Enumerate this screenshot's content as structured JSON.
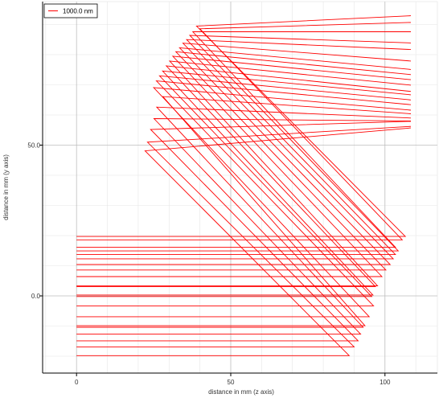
{
  "chart_data": {
    "type": "line",
    "title": "",
    "xlabel": "distance in mm (z axis)",
    "ylabel": "distance in mm (y axis)",
    "xlim": [
      -11,
      117
    ],
    "ylim": [
      -25.6,
      97.6
    ],
    "x_ticks": [
      {
        "value": 0,
        "label": "0"
      },
      {
        "value": 50,
        "label": "50"
      },
      {
        "value": 100,
        "label": "100"
      }
    ],
    "y_ticks": [
      {
        "value": 0,
        "label": "0.0"
      },
      {
        "value": 50,
        "label": "50.0"
      }
    ],
    "grid": true,
    "legend": {
      "position": "top-left",
      "entries": [
        "1000.0 nm"
      ]
    },
    "series": [
      {
        "name": "1000.0 nm",
        "color": "#ff0000",
        "segments": [
          [
            [
              0,
              19.7
            ],
            [
              106.6,
              19.7
            ],
            [
              38.9,
              89.5
            ],
            [
              108.4,
              92.9
            ]
          ],
          [
            [
              0,
              18.6
            ],
            [
              105.6,
              18.6
            ],
            [
              40.0,
              88.6
            ],
            [
              108.4,
              90.7
            ]
          ],
          [
            [
              0,
              16.1
            ],
            [
              103.4,
              16.1
            ],
            [
              37.7,
              87.6
            ],
            [
              108.4,
              87.6
            ]
          ],
          [
            [
              0,
              14.9
            ],
            [
              104.3,
              14.9
            ],
            [
              36.7,
              86.4
            ],
            [
              108.4,
              83.9
            ]
          ],
          [
            [
              0,
              13.7
            ],
            [
              103.4,
              13.7
            ],
            [
              35.7,
              85.0
            ],
            [
              108.4,
              81.7
            ]
          ],
          [
            [
              0,
              12.3
            ],
            [
              102.7,
              12.3
            ],
            [
              34.5,
              83.8
            ],
            [
              108.4,
              77.9
            ]
          ],
          [
            [
              0,
              10.4
            ],
            [
              101.7,
              10.4
            ],
            [
              33.4,
              82.3
            ],
            [
              108.4,
              75.1
            ]
          ],
          [
            [
              0,
              8.6
            ],
            [
              100.3,
              8.6
            ],
            [
              32.2,
              81.0
            ],
            [
              108.4,
              73.4
            ]
          ],
          [
            [
              0,
              6.4
            ],
            [
              99.0,
              6.4
            ],
            [
              31.2,
              79.5
            ],
            [
              108.4,
              71.7
            ]
          ],
          [
            [
              0,
              3.3
            ],
            [
              97.6,
              3.3
            ],
            [
              30.2,
              77.9
            ],
            [
              108.4,
              69.9
            ]
          ],
          [
            [
              0,
              3.1
            ],
            [
              96.9,
              3.1
            ],
            [
              29.1,
              76.3
            ],
            [
              108.4,
              67.8
            ]
          ],
          [
            [
              0,
              0.3
            ],
            [
              96.1,
              0.3
            ],
            [
              27.9,
              74.6
            ],
            [
              108.4,
              66.7
            ]
          ],
          [
            [
              0,
              -0.2
            ],
            [
              95.7,
              -0.2
            ],
            [
              26.9,
              73.0
            ],
            [
              108.4,
              65.0
            ]
          ],
          [
            [
              0,
              -3.3
            ],
            [
              96.3,
              -3.3
            ],
            [
              25.9,
              71.3
            ],
            [
              108.4,
              63.4
            ]
          ],
          [
            [
              0,
              -6.9
            ],
            [
              94.9,
              -6.9
            ],
            [
              25.0,
              69.1
            ],
            [
              108.4,
              61.6
            ]
          ],
          [
            [
              0,
              -9.9
            ],
            [
              93.5,
              -9.9
            ],
            [
              28.0,
              66.1
            ],
            [
              108.4,
              60.4
            ]
          ],
          [
            [
              0,
              -10.4
            ],
            [
              92.9,
              -10.4
            ],
            [
              26.0,
              62.6
            ],
            [
              108.4,
              59.0
            ]
          ],
          [
            [
              0,
              -12.7
            ],
            [
              92.1,
              -12.7
            ],
            [
              25.1,
              58.8
            ],
            [
              108.4,
              58.0
            ]
          ],
          [
            [
              0,
              -14.9
            ],
            [
              91.3,
              -14.9
            ],
            [
              24.0,
              55.2
            ],
            [
              108.4,
              57.9
            ]
          ],
          [
            [
              0,
              -16.9
            ],
            [
              90.0,
              -16.9
            ],
            [
              23.0,
              51.0
            ],
            [
              108.4,
              56.2
            ]
          ],
          [
            [
              0,
              -19.8
            ],
            [
              88.4,
              -19.8
            ],
            [
              22.2,
              48.1
            ],
            [
              108.4,
              55.7
            ]
          ]
        ]
      }
    ]
  }
}
